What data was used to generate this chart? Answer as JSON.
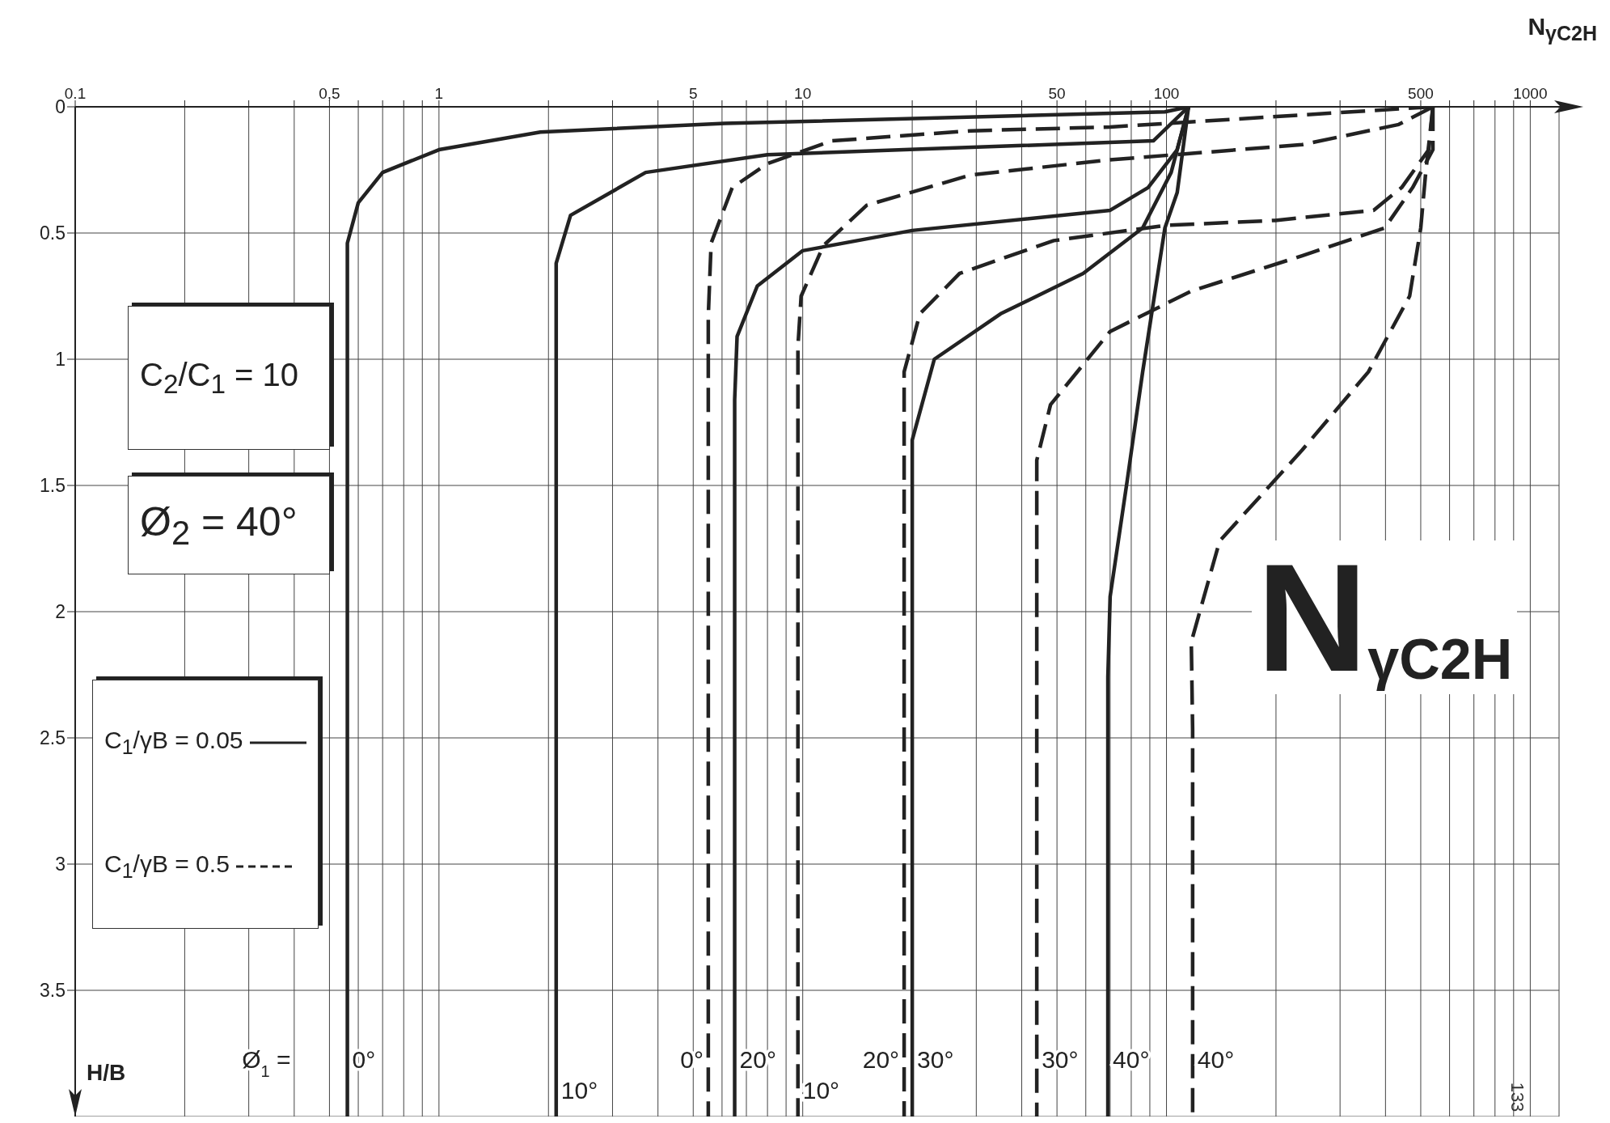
{
  "chart_data": {
    "type": "line",
    "title": "N$_{γC2H}$",
    "xlabel": "N$_{γC2H}$",
    "ylabel": "H/B",
    "log": "x",
    "grid": true,
    "xlim": [
      0.1,
      1200
    ],
    "ylim": [
      4,
      0
    ],
    "xticks": [
      0.1,
      {
        "value": 0.2,
        "label": null
      },
      {
        "value": 0.3,
        "label": null
      },
      {
        "value": 0.4,
        "label": null
      },
      {
        "value": 0.5,
        "label": "0,5"
      },
      {
        "value": 0.6,
        "label": null
      },
      {
        "value": 0.7,
        "label": null
      },
      {
        "value": 0.8,
        "label": null
      },
      {
        "value": 0.9,
        "label": null
      },
      1,
      {
        "value": 2,
        "label": null
      },
      {
        "value": 3,
        "label": null
      },
      {
        "value": 4,
        "label": null
      },
      5,
      {
        "value": 6,
        "label": null
      },
      {
        "value": 7,
        "label": null
      },
      {
        "value": 8,
        "label": null
      },
      {
        "value": 9,
        "label": null
      },
      10,
      {
        "value": 20,
        "label": null
      },
      {
        "value": 30,
        "label": null
      },
      {
        "value": 40,
        "label": null
      },
      50,
      {
        "value": 60,
        "label": null
      },
      {
        "value": 70,
        "label": null
      },
      {
        "value": 80,
        "label": null
      },
      {
        "value": 90,
        "label": null
      },
      100,
      {
        "value": 200,
        "label": null
      },
      {
        "value": 300,
        "label": null
      },
      {
        "value": 400,
        "label": null
      },
      500,
      {
        "value": 600,
        "label": null
      },
      {
        "value": 700,
        "label": null
      },
      {
        "value": 800,
        "label": null
      },
      {
        "value": 900,
        "label": null
      },
      1000
    ],
    "yticks": [
      0,
      0.5,
      1,
      1.5,
      2,
      2.5,
      3,
      3.5
    ],
    "series": [
      {
        "name": "0°",
        "color": "#222222",
        "line_style": "solid",
        "x": [
          115,
          99,
          6.1,
          1.9,
          1.0,
          0.7,
          0.6,
          0.56,
          0.56,
          0.56
        ],
        "values": [
          0,
          0.02,
          0.066,
          0.1,
          0.17,
          0.26,
          0.38,
          0.54,
          0.66,
          4.0
        ]
      },
      {
        "name": "10°",
        "color": "#222222",
        "line_style": "solid",
        "x": [
          115,
          92,
          19,
          8.0,
          3.7,
          2.3,
          2.1,
          2.1,
          2.1
        ],
        "values": [
          0,
          0.135,
          0.17,
          0.19,
          0.26,
          0.43,
          0.62,
          0.79,
          4.0
        ]
      },
      {
        "name": "0°",
        "color": "#222222",
        "line_style": "dashed",
        "x": [
          540,
          70,
          29,
          12,
          8.0,
          6.4,
          5.6,
          5.5,
          5.5
        ],
        "values": [
          0,
          0.08,
          0.095,
          0.135,
          0.225,
          0.32,
          0.54,
          0.83,
          4.0
        ]
      },
      {
        "name": "20°",
        "color": "#222222",
        "line_style": "solid",
        "x": [
          115,
          107,
          89,
          70,
          20,
          10,
          7.5,
          6.6,
          6.5,
          6.5
        ],
        "values": [
          0,
          0.17,
          0.32,
          0.41,
          0.49,
          0.57,
          0.71,
          0.91,
          1.16,
          4.0
        ]
      },
      {
        "name": "10°",
        "color": "#222222",
        "line_style": "dashed",
        "x": [
          540,
          435,
          236,
          70,
          29,
          15,
          11.4,
          9.9,
          9.7,
          9.7
        ],
        "values": [
          0,
          0.07,
          0.15,
          0.21,
          0.27,
          0.39,
          0.55,
          0.75,
          0.95,
          4.0
        ]
      },
      {
        "name": "20°",
        "color": "#222222",
        "line_style": "dashed",
        "x": [
          540,
          526,
          443,
          371,
          199,
          99,
          49,
          27,
          21,
          19,
          19,
          19
        ],
        "values": [
          0,
          0.17,
          0.32,
          0.41,
          0.45,
          0.47,
          0.53,
          0.66,
          0.82,
          1.05,
          1.32,
          4.0
        ]
      },
      {
        "name": "30°",
        "color": "#222222",
        "line_style": "solid",
        "x": [
          115,
          103,
          86,
          59,
          35,
          23,
          20,
          20,
          20
        ],
        "values": [
          0,
          0.26,
          0.48,
          0.66,
          0.82,
          1.0,
          1.32,
          1.65,
          4.0
        ]
      },
      {
        "name": "30°",
        "color": "#222222",
        "line_style": "dashed",
        "x": [
          540,
          540,
          475,
          398,
          236,
          117,
          70,
          48,
          44,
          44,
          44
        ],
        "values": [
          0,
          0.17,
          0.32,
          0.48,
          0.59,
          0.73,
          0.89,
          1.18,
          1.4,
          1.73,
          4.0
        ]
      },
      {
        "name": "40°",
        "color": "#222222",
        "line_style": "solid",
        "x": [
          115,
          107,
          99,
          86,
          78,
          70,
          69,
          69
        ],
        "values": [
          0,
          0.34,
          0.48,
          1.05,
          1.48,
          1.94,
          2.26,
          4.0
        ]
      },
      {
        "name": "40°",
        "color": "#222222",
        "line_style": "dashed",
        "x": [
          540,
          516,
          500,
          466,
          359,
          236,
          140,
          117,
          118,
          118
        ],
        "values": [
          0,
          0.26,
          0.48,
          0.75,
          1.05,
          1.36,
          1.72,
          2.12,
          2.47,
          4.0
        ]
      }
    ],
    "annotations": [
      "Ø$_{1}$ =",
      "C$_{2}$/C$_{1}$ = 10",
      "Ø$_{2}$ = 40°",
      "C$_{1}$/γB = 0.05",
      "C$_{1}$/γB = 0.5",
      "133"
    ]
  }
}
